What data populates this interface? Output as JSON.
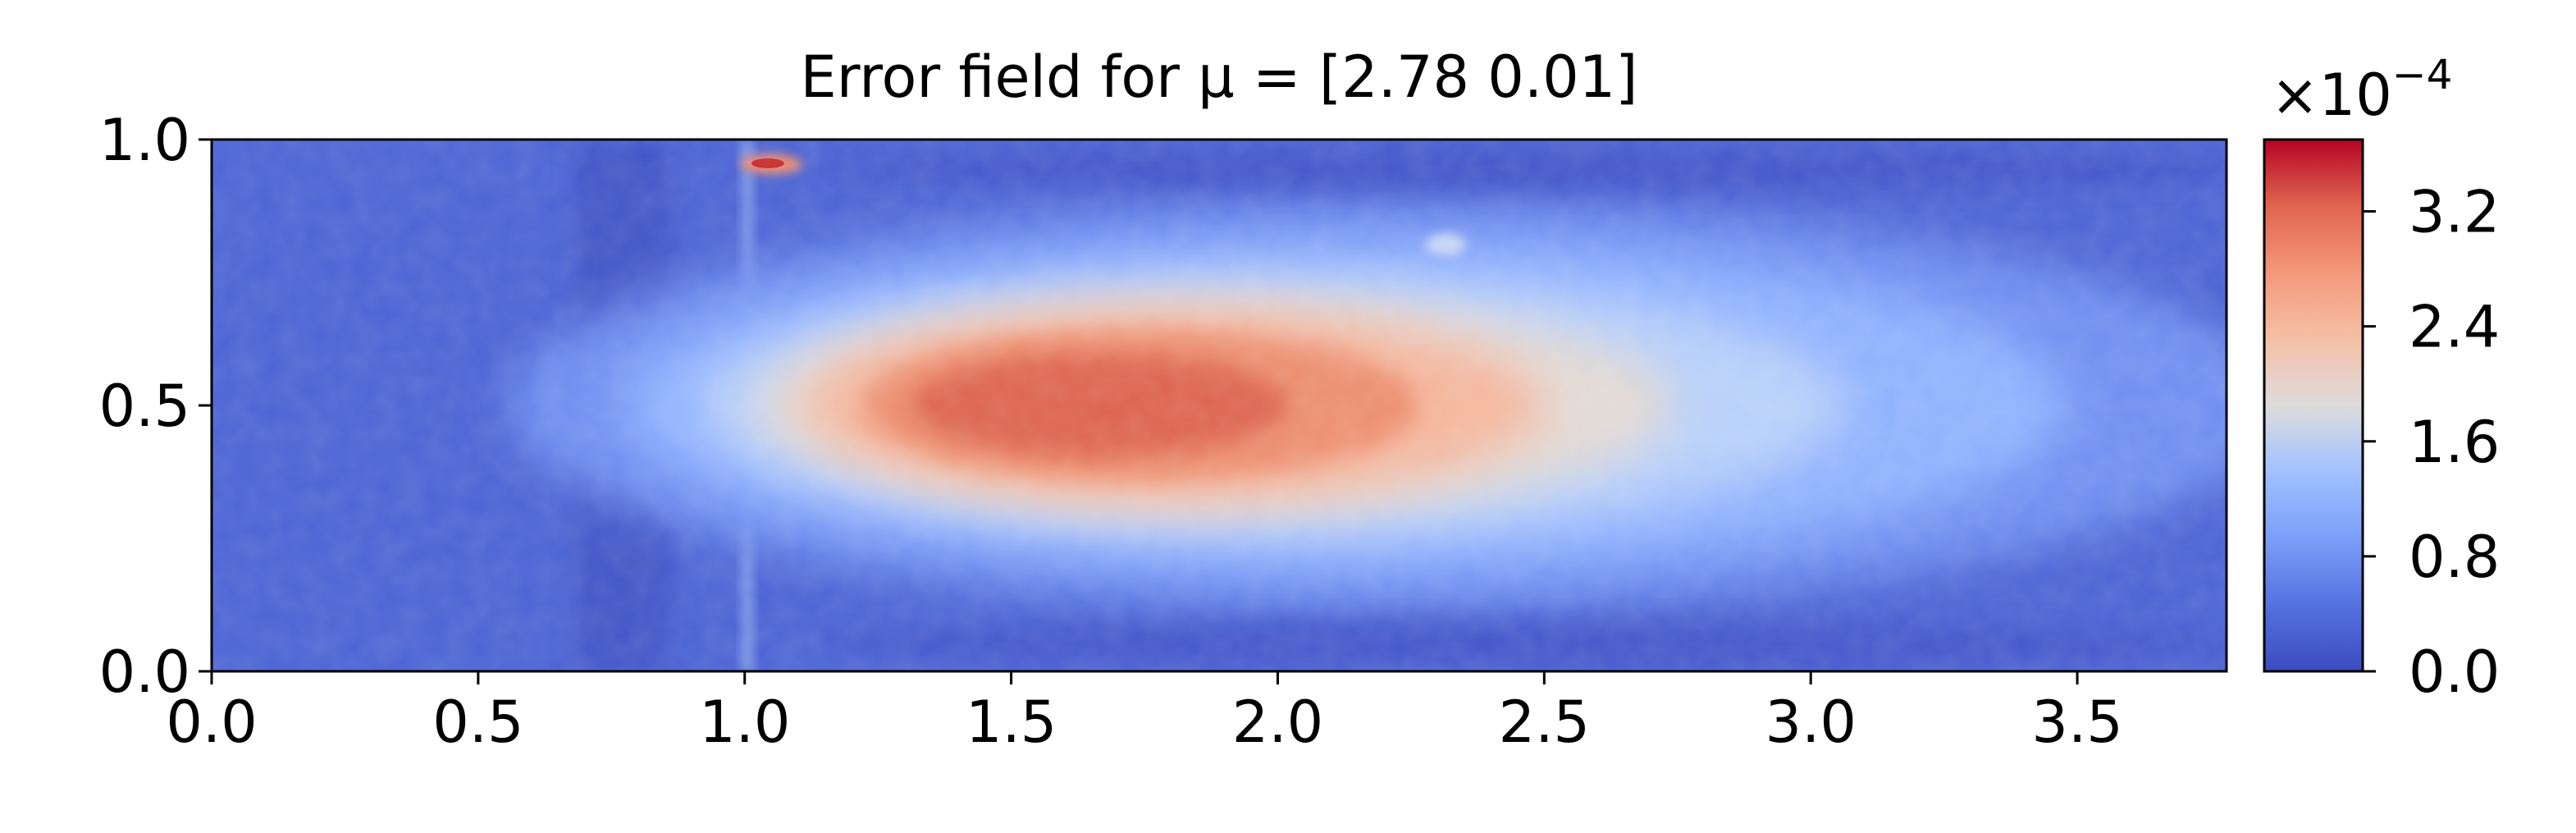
{
  "chart_data": {
    "type": "heatmap",
    "title": "Error field for μ = [2.78 0.01]",
    "xlim": [
      0.0,
      3.78
    ],
    "ylim": [
      0.0,
      1.0
    ],
    "x_ticks": [
      0.0,
      0.5,
      1.0,
      1.5,
      2.0,
      2.5,
      3.0,
      3.5
    ],
    "x_tick_labels": [
      "0.0",
      "0.5",
      "1.0",
      "1.5",
      "2.0",
      "2.5",
      "3.0",
      "3.5"
    ],
    "y_ticks": [
      0.0,
      0.5,
      1.0
    ],
    "y_tick_labels": [
      "0.0",
      "0.5",
      "1.0"
    ],
    "colorbar": {
      "colormap": "coolwarm",
      "range": [
        0.0,
        3.7
      ],
      "ticks": [
        0.0,
        0.8,
        1.6,
        2.4,
        3.2
      ],
      "tick_labels": [
        "0.0",
        "0.8",
        "1.6",
        "2.4",
        "3.2"
      ],
      "multiplier_label": "×10",
      "multiplier_exponent": "−4",
      "low_color": "#3b4cc0",
      "high_color": "#b40426"
    },
    "features": [
      {
        "description": "hot core",
        "x": 1.7,
        "y": 0.5,
        "value": 3.0
      },
      {
        "description": "corner spike",
        "x": 1.05,
        "y": 0.96,
        "value": 3.7
      },
      {
        "description": "small spot",
        "x": 2.33,
        "y": 0.8,
        "value": 1.2
      }
    ]
  }
}
